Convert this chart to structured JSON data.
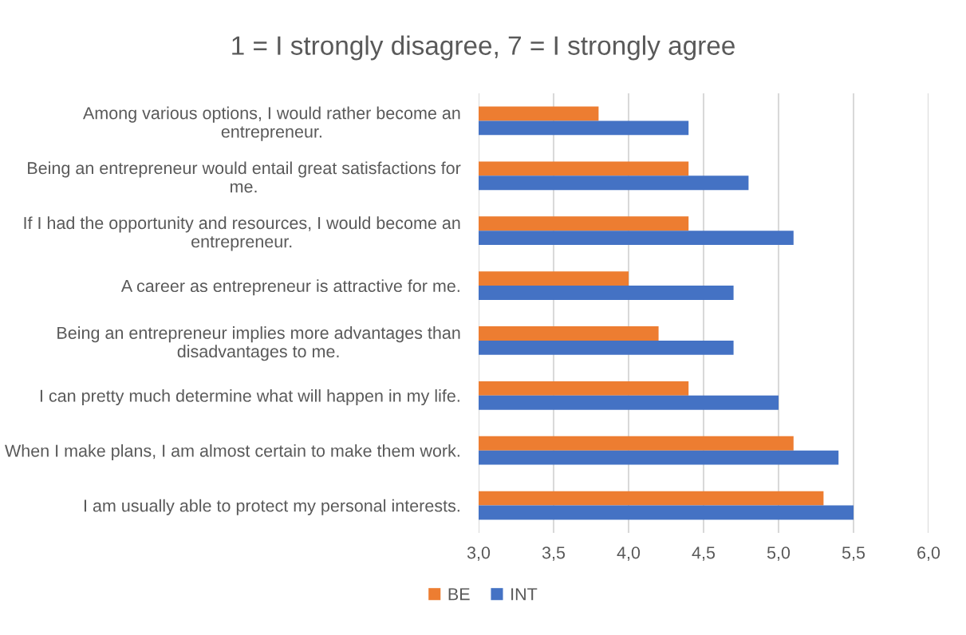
{
  "chart_data": {
    "type": "bar",
    "orientation": "horizontal",
    "title": "1 = I strongly disagree, 7 = I strongly agree",
    "categories": [
      "Among various options, I would rather become an entrepreneur.",
      "Being an entrepreneur would entail great satisfactions for me.",
      "If I had the opportunity and resources, I would become an entrepreneur.",
      "A career as entrepreneur is attractive for me.",
      "Being an entrepreneur implies more advantages than disadvantages to me.",
      "I can pretty much determine what will happen in my life.",
      "When I make plans, I am almost certain to make them work.",
      "I am usually able to protect my personal interests."
    ],
    "series": [
      {
        "name": "BE",
        "color": "#ed7d31",
        "values": [
          3.8,
          4.4,
          4.4,
          4.0,
          4.2,
          4.4,
          5.1,
          5.3
        ]
      },
      {
        "name": "INT",
        "color": "#4472c4",
        "values": [
          4.4,
          4.8,
          5.1,
          4.7,
          4.7,
          5.0,
          5.4,
          5.5
        ]
      }
    ],
    "xlim": [
      3.0,
      6.0
    ],
    "xticks": [
      {
        "value": 3.0,
        "label": "3,0"
      },
      {
        "value": 3.5,
        "label": "3,5"
      },
      {
        "value": 4.0,
        "label": "4,0"
      },
      {
        "value": 4.5,
        "label": "4,5"
      },
      {
        "value": 5.0,
        "label": "5,0"
      },
      {
        "value": 5.5,
        "label": "5,5"
      },
      {
        "value": 6.0,
        "label": "6,0"
      }
    ],
    "grid": "x",
    "legend": "bottom"
  }
}
